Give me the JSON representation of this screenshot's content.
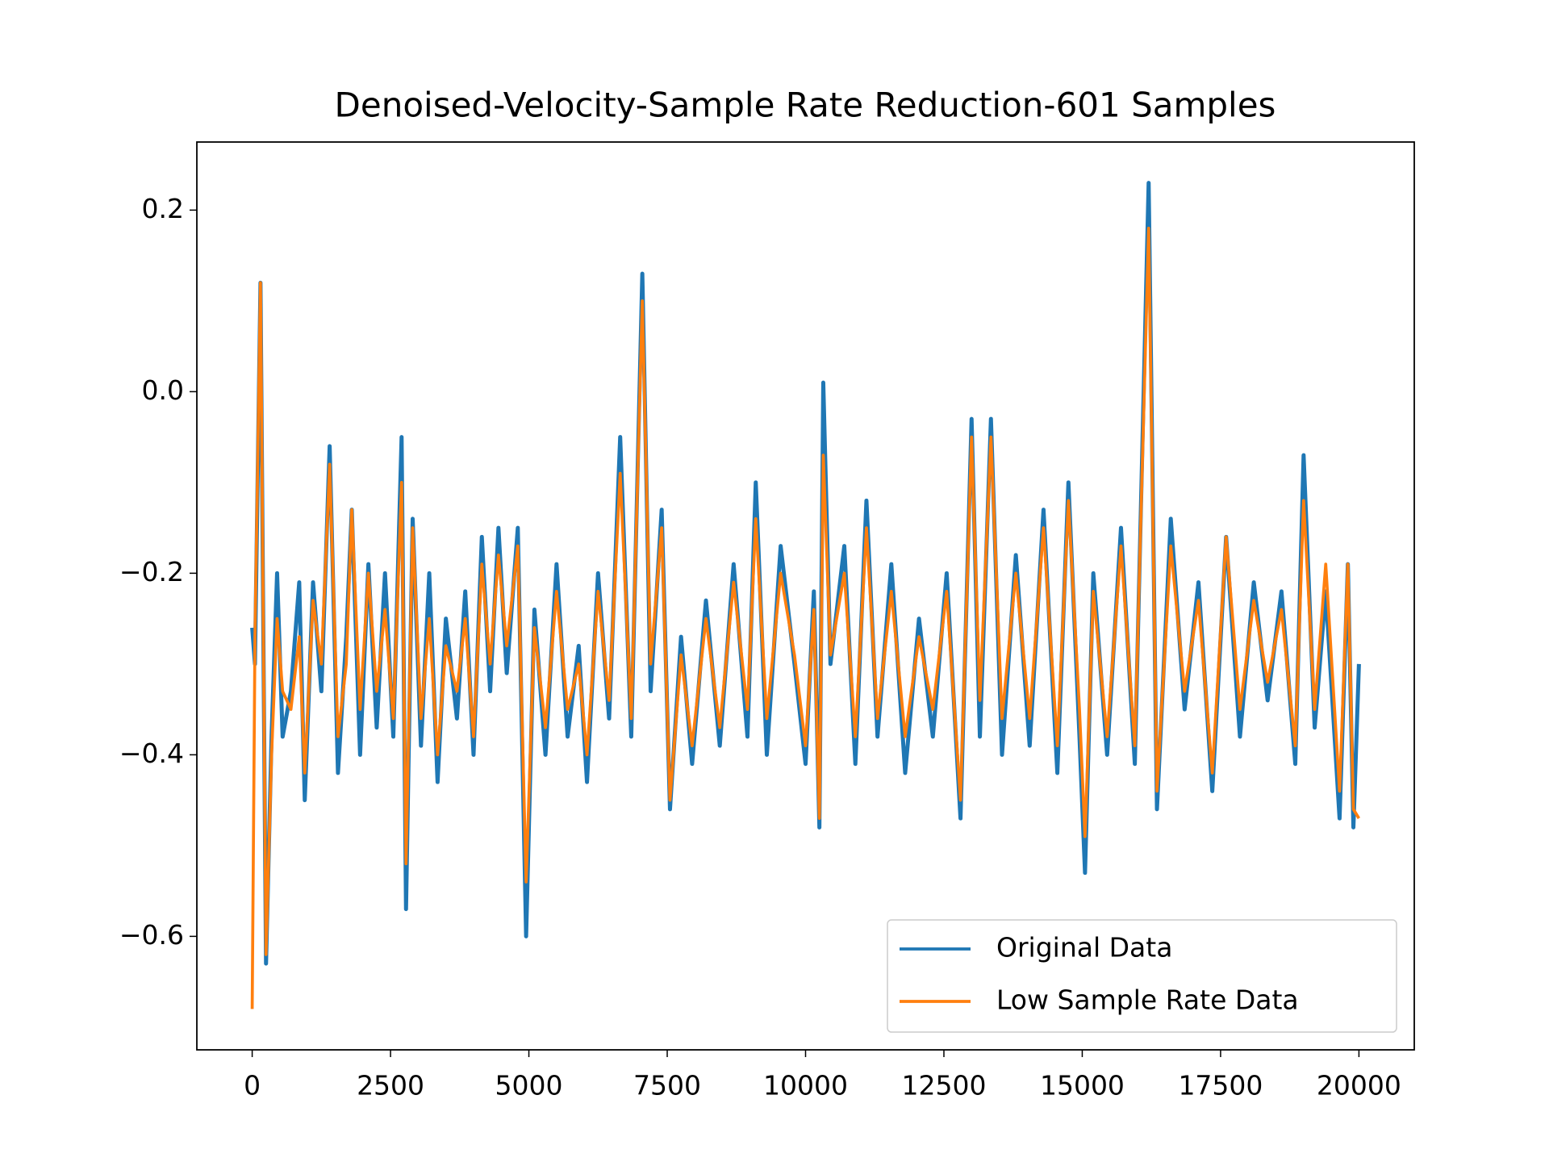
{
  "chart_data": {
    "type": "line",
    "title": "Denoised-Velocity-Sample Rate Reduction-601 Samples",
    "x": [
      0,
      50,
      150,
      250,
      350,
      450,
      550,
      700,
      850,
      950,
      1100,
      1250,
      1400,
      1550,
      1700,
      1800,
      1950,
      2100,
      2250,
      2400,
      2550,
      2700,
      2780,
      2900,
      3050,
      3200,
      3350,
      3500,
      3700,
      3850,
      4000,
      4150,
      4300,
      4450,
      4600,
      4800,
      4950,
      5100,
      5300,
      5500,
      5700,
      5900,
      6050,
      6250,
      6450,
      6650,
      6850,
      7050,
      7200,
      7400,
      7550,
      7750,
      7950,
      8200,
      8450,
      8700,
      8950,
      9100,
      9300,
      9550,
      9800,
      10000,
      10150,
      10250,
      10320,
      10450,
      10700,
      10900,
      11100,
      11300,
      11550,
      11800,
      12050,
      12300,
      12550,
      12800,
      13000,
      13150,
      13350,
      13550,
      13800,
      14050,
      14300,
      14550,
      14750,
      14950,
      15050,
      15200,
      15450,
      15700,
      15950,
      16200,
      16350,
      16600,
      16850,
      17100,
      17350,
      17600,
      17850,
      18100,
      18350,
      18600,
      18850,
      19000,
      19200,
      19400,
      19650,
      19800,
      19900,
      20000
    ],
    "series": [
      {
        "name": "Original Data",
        "color": "#1f77b4",
        "values": [
          -0.26,
          -0.3,
          0.12,
          -0.63,
          -0.38,
          -0.2,
          -0.38,
          -0.33,
          -0.21,
          -0.45,
          -0.21,
          -0.33,
          -0.06,
          -0.42,
          -0.27,
          -0.13,
          -0.4,
          -0.19,
          -0.37,
          -0.2,
          -0.38,
          -0.05,
          -0.57,
          -0.14,
          -0.39,
          -0.2,
          -0.43,
          -0.25,
          -0.36,
          -0.22,
          -0.4,
          -0.16,
          -0.33,
          -0.15,
          -0.31,
          -0.15,
          -0.6,
          -0.24,
          -0.4,
          -0.19,
          -0.38,
          -0.28,
          -0.43,
          -0.2,
          -0.36,
          -0.05,
          -0.38,
          0.13,
          -0.33,
          -0.13,
          -0.46,
          -0.27,
          -0.41,
          -0.23,
          -0.39,
          -0.19,
          -0.38,
          -0.1,
          -0.4,
          -0.17,
          -0.3,
          -0.41,
          -0.22,
          -0.48,
          0.01,
          -0.3,
          -0.17,
          -0.41,
          -0.12,
          -0.38,
          -0.19,
          -0.42,
          -0.25,
          -0.38,
          -0.2,
          -0.47,
          -0.03,
          -0.38,
          -0.03,
          -0.4,
          -0.18,
          -0.39,
          -0.13,
          -0.42,
          -0.1,
          -0.38,
          -0.53,
          -0.2,
          -0.4,
          -0.15,
          -0.41,
          0.23,
          -0.46,
          -0.14,
          -0.35,
          -0.21,
          -0.44,
          -0.16,
          -0.38,
          -0.21,
          -0.34,
          -0.22,
          -0.41,
          -0.07,
          -0.37,
          -0.22,
          -0.47,
          -0.19,
          -0.48,
          -0.3
        ]
      },
      {
        "name": "Low Sample Rate Data",
        "color": "#ff7f0e",
        "values": [
          -0.68,
          -0.27,
          0.12,
          -0.62,
          -0.4,
          -0.25,
          -0.33,
          -0.35,
          -0.27,
          -0.42,
          -0.23,
          -0.3,
          -0.08,
          -0.38,
          -0.3,
          -0.13,
          -0.35,
          -0.2,
          -0.33,
          -0.24,
          -0.36,
          -0.1,
          -0.52,
          -0.15,
          -0.36,
          -0.25,
          -0.4,
          -0.28,
          -0.33,
          -0.25,
          -0.38,
          -0.19,
          -0.3,
          -0.18,
          -0.28,
          -0.17,
          -0.54,
          -0.26,
          -0.37,
          -0.22,
          -0.35,
          -0.3,
          -0.4,
          -0.22,
          -0.34,
          -0.09,
          -0.36,
          0.1,
          -0.3,
          -0.15,
          -0.45,
          -0.29,
          -0.39,
          -0.25,
          -0.37,
          -0.21,
          -0.35,
          -0.14,
          -0.36,
          -0.2,
          -0.29,
          -0.39,
          -0.24,
          -0.47,
          -0.07,
          -0.29,
          -0.2,
          -0.38,
          -0.15,
          -0.36,
          -0.22,
          -0.38,
          -0.27,
          -0.35,
          -0.22,
          -0.45,
          -0.05,
          -0.34,
          -0.05,
          -0.36,
          -0.2,
          -0.36,
          -0.15,
          -0.39,
          -0.12,
          -0.35,
          -0.49,
          -0.22,
          -0.38,
          -0.17,
          -0.39,
          0.18,
          -0.44,
          -0.17,
          -0.33,
          -0.23,
          -0.42,
          -0.16,
          -0.35,
          -0.23,
          -0.32,
          -0.24,
          -0.39,
          -0.12,
          -0.35,
          -0.19,
          -0.44,
          -0.19,
          -0.46,
          -0.47
        ]
      }
    ],
    "xlim": [
      -1000,
      21000
    ],
    "ylim": [
      -0.725,
      0.275
    ],
    "xticks": [
      0,
      2500,
      5000,
      7500,
      10000,
      12500,
      15000,
      17500,
      20000
    ],
    "yticks": [
      {
        "value": -0.6,
        "label": "−0.6"
      },
      {
        "value": -0.4,
        "label": "−0.4"
      },
      {
        "value": -0.2,
        "label": "−0.2"
      },
      {
        "value": 0.0,
        "label": "0.0"
      },
      0.2
    ],
    "legend": "lower right",
    "grid": false
  }
}
